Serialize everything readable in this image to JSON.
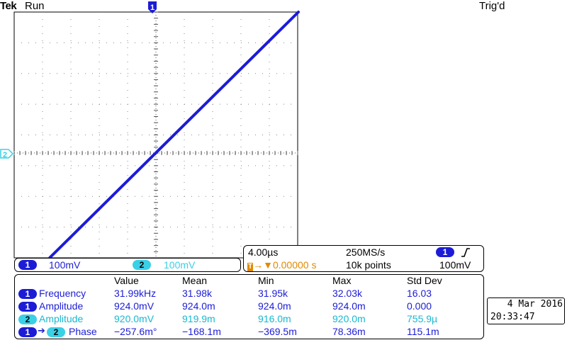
{
  "header": {
    "brand": "Tek",
    "run_status": "Run",
    "trigger_status": "Trig'd"
  },
  "markers": {
    "trigger_position": "1",
    "channel2_level": "2"
  },
  "channels": [
    {
      "number": "1",
      "scale": "100mV"
    },
    {
      "number": "2",
      "scale": "100mV"
    }
  ],
  "timebase": {
    "time_per_div": "4.00µs",
    "sample_rate": "250MS/s",
    "trigger_source": "1",
    "trigger_icon": "rising-edge-icon",
    "trigger_offset": "0.00000 s",
    "record_length": "10k points",
    "trigger_level": "100mV"
  },
  "measurements": {
    "headers": [
      "Value",
      "Mean",
      "Min",
      "Max",
      "Std Dev"
    ],
    "rows": [
      {
        "source": "1",
        "label": "Frequency",
        "value": "31.99kHz",
        "mean": "31.98k",
        "min": "31.95k",
        "max": "32.03k",
        "std": "16.03"
      },
      {
        "source": "1",
        "label": "Amplitude",
        "value": "924.0mV",
        "mean": "924.0m",
        "min": "924.0m",
        "max": "924.0m",
        "std": "0.000"
      },
      {
        "source": "2",
        "label": "Amplitude",
        "value": "920.0mV",
        "mean": "919.9m",
        "min": "916.0m",
        "max": "920.0m",
        "std": "755.9µ"
      },
      {
        "source": "1",
        "source2": "2",
        "label": "Phase",
        "value": "−257.6m°",
        "mean": "−168.1m",
        "min": "−369.5m",
        "max": "78.36m",
        "std": "115.1m"
      }
    ]
  },
  "datetime": {
    "date": "4 Mar 2016",
    "time": "20:33:47"
  },
  "colors": {
    "ch1": "#1c1cd6",
    "ch2": "#3ad0e6",
    "trigger": "#e08a00"
  }
}
